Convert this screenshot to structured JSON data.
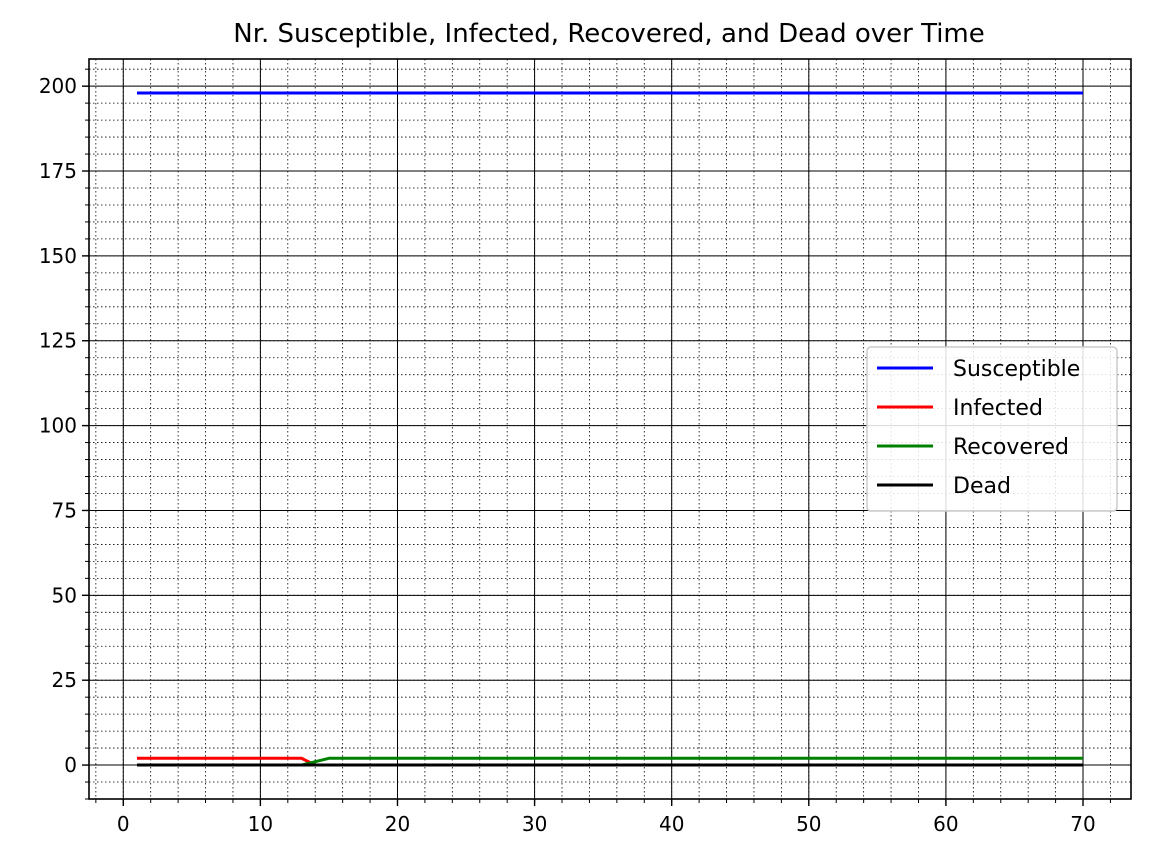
{
  "chart_data": {
    "type": "line",
    "title": "Nr. Susceptible, Infected, Recovered, and Dead over Time",
    "xlabel": "",
    "ylabel": "",
    "xlim": [
      -2.5,
      73.5
    ],
    "ylim": [
      -10,
      208
    ],
    "xticks": [
      0,
      10,
      20,
      30,
      40,
      50,
      60,
      70
    ],
    "yticks": [
      0,
      25,
      50,
      75,
      100,
      125,
      150,
      175,
      200
    ],
    "xtick_labels": [
      "0",
      "10",
      "20",
      "30",
      "40",
      "50",
      "60",
      "70"
    ],
    "ytick_labels": [
      "0",
      "25",
      "50",
      "75",
      "100",
      "125",
      "150",
      "175",
      "200"
    ],
    "grid": true,
    "minor_grid": true,
    "legend_position": "center-right",
    "series": [
      {
        "name": "Susceptible",
        "color": "#0000ff",
        "x": [
          1,
          70
        ],
        "y": [
          198,
          198
        ]
      },
      {
        "name": "Infected",
        "color": "#ff0000",
        "x": [
          1,
          13,
          14,
          70
        ],
        "y": [
          2,
          2,
          0,
          0
        ]
      },
      {
        "name": "Recovered",
        "color": "#008000",
        "x": [
          1,
          13,
          14,
          15,
          70
        ],
        "y": [
          0,
          0,
          1,
          2,
          2
        ]
      },
      {
        "name": "Dead",
        "color": "#000000",
        "x": [
          1,
          70
        ],
        "y": [
          0,
          0
        ]
      }
    ]
  }
}
